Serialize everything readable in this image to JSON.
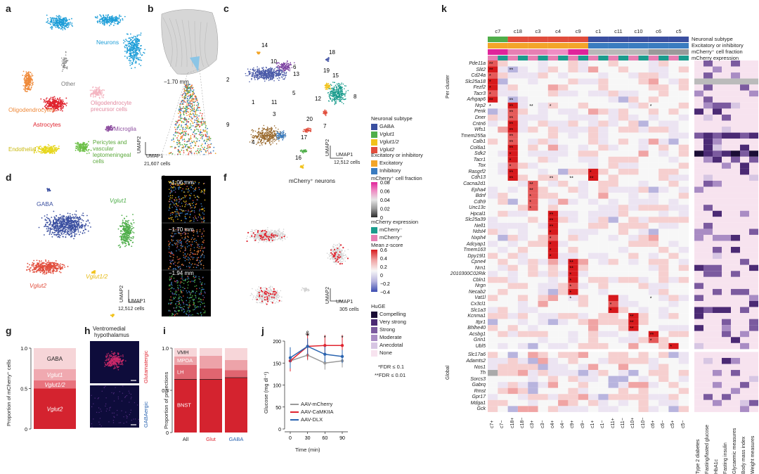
{
  "panel_letters": [
    "a",
    "b",
    "c",
    "d",
    "e",
    "f",
    "g",
    "h",
    "i",
    "j",
    "k"
  ],
  "a": {
    "labels": {
      "neurons": "Neurons",
      "other": "Other",
      "oligodendrocytes": "Oligodendrocytes",
      "opc1": "Oligodendrocyte",
      "opc2": "precursor cells",
      "astrocytes": "Astrocytes",
      "microglia": "Microglia",
      "endothelial": "Endothelial",
      "pericytes1": "Pericytes and",
      "pericytes2": "vascular",
      "pericytes3": "leptomeningeal",
      "pericytes4": "cells"
    },
    "umap1": "UMAP1",
    "umap2": "UMAP2",
    "cells": "21,607 cells",
    "colors": {
      "neurons": "#1f9ed8",
      "oligo": "#ef8a3a",
      "opc": "#f4b6c2",
      "astro": "#e0242f",
      "micro": "#8e4fa0",
      "endo": "#e6d61c",
      "peri": "#6bbf45"
    }
  },
  "b": {
    "depth": "−1.70 mm"
  },
  "c": {
    "clusters": [
      "14",
      "10",
      "6",
      "13",
      "2",
      "1",
      "11",
      "5",
      "18",
      "19",
      "15",
      "12",
      "8",
      "7",
      "9",
      "3",
      "4",
      "17",
      "20",
      "16"
    ],
    "umap1": "UMAP1",
    "umap2": "UMAP2",
    "cells": "12,512 cells"
  },
  "legend_c": {
    "subtype_title": "Neuronal subtype",
    "subtypes": [
      {
        "label": "GABA",
        "color": "#3a4fa0"
      },
      {
        "label": "Vglut1",
        "color": "#4fae4a"
      },
      {
        "label": "Vglut1/2",
        "color": "#f1c21b"
      },
      {
        "label": "Vglut2",
        "color": "#e14d3c"
      }
    ],
    "exc_title": "Excitatory or inhibitory",
    "exc": [
      {
        "label": "Excitatory",
        "color": "#f3a529"
      },
      {
        "label": "Inhibitory",
        "color": "#3a7cc0"
      }
    ],
    "frac_title": "mCherry⁺ cell fraction",
    "frac_ticks": [
      "0.08",
      "0.06",
      "0.04",
      "0.02",
      "0"
    ],
    "expr_title": "mCherry expression",
    "expr": [
      {
        "label": "mCherry⁻",
        "color": "#1b9c8d"
      },
      {
        "label": "mCherry⁺",
        "color": "#e77fb3"
      }
    ],
    "z_title": "Mean z-score",
    "z_ticks": [
      "0.6",
      "0.4",
      "0.2",
      "0",
      "−0.2",
      "−0.4"
    ],
    "huge_title": "HuGE",
    "huge": [
      {
        "label": "Compelling",
        "color": "#1a0d35"
      },
      {
        "label": "Very strong",
        "color": "#4b2a74"
      },
      {
        "label": "Strong",
        "color": "#7b5a9f"
      },
      {
        "label": "Moderate",
        "color": "#a98cc4"
      },
      {
        "label": "Anecdotal",
        "color": "#d7c6e3"
      },
      {
        "label": "None",
        "color": "#f7e3ef"
      }
    ]
  },
  "d": {
    "gaba": "GABA",
    "vglut1": "Vglut1",
    "vglut2": "Vglut2",
    "vglut12": "Vglut1/2",
    "umap1": "UMAP1",
    "umap2": "UMAP2",
    "cells": "12,512 cells"
  },
  "e": {
    "depths": [
      "−1.06 mm",
      "−1.70 mm",
      "−1.94 mm"
    ]
  },
  "f": {
    "title": "mCherry⁺ neurons",
    "umap1": "UMAP1",
    "umap2": "UMAP2",
    "cells": "305 cells"
  },
  "g": {
    "ylabel": "Proportion of mCherry⁺ cells",
    "yticks": [
      "1.0",
      "0.5",
      "0"
    ],
    "segments": [
      "GABA",
      "Vglut1",
      "Vglut1/2",
      "Vglut2"
    ]
  },
  "h": {
    "title1": "Ventromedial",
    "title2": "hypothalamus",
    "glut": "Glutamatergic",
    "gaba": "GABAergic"
  },
  "i": {
    "ylabel": "Proportion of projections",
    "yticks": [
      "1.0",
      "0.5",
      "0"
    ],
    "segments": [
      "VMH",
      "MPOA",
      "LH",
      "BNST"
    ],
    "cats": [
      "All",
      "Glut",
      "GABA"
    ]
  },
  "j": {
    "ylabel": "Glucose (mg dl⁻¹)",
    "xlabel": "Time (min)",
    "yticks": [
      "200",
      "150",
      "100",
      "50",
      "0"
    ],
    "xticks": [
      "0",
      "30",
      "60",
      "90"
    ],
    "sig": [
      "&",
      "*",
      "*",
      "*",
      "*"
    ],
    "series": [
      {
        "name": "AAV-mCherry",
        "color": "#9a9a9a"
      },
      {
        "name": "AAV-CaMKIIA",
        "color": "#e0242f"
      },
      {
        "name": "AAV-DLX",
        "color": "#2a64b0"
      }
    ]
  },
  "fdr": {
    "l1": "*FDR ≤ 0.1",
    "l2": "**FDR ≤ 0.01"
  },
  "k": {
    "clusters": [
      "c7",
      "c18",
      "c3",
      "c4",
      "c9",
      "c1",
      "c11",
      "c10",
      "c6",
      "c5"
    ],
    "annot_rows": [
      "Neuronal subtype",
      "Excitatory or inhibitory",
      "mCherry⁺ cell fraction",
      "mCherry expression"
    ],
    "per_cluster": "Per cluster",
    "global": "Global",
    "genes": [
      "Pde11a",
      "Slit2",
      "Cd24a",
      "Slc25a18",
      "Fezf2",
      "Tacr3",
      "Arhgap6",
      "Nrp2",
      "Penk",
      "Dner",
      "Cntn6",
      "Wfs1",
      "Tmem255a",
      "Calb1",
      "Col6a1",
      "Sdk2",
      "Tacr1",
      "Tox",
      "Rasgrf2",
      "Cdh13",
      "Cacna2d1",
      "Epha4",
      "Bdnf",
      "Cdh9",
      "Unc13c",
      "Hpcal1",
      "Slc25a39",
      "Nell1",
      "Ndst4",
      "Nxph4",
      "Adcyap1",
      "Tmem163",
      "Dpy19l1",
      "Cpne4",
      "Nrn1",
      "2010300C02Rik",
      "Cbln1",
      "Nrgn",
      "Necab2",
      "Vat1l",
      "Cx3cl1",
      "Slc1a3",
      "Kcnma1",
      "Itpr1",
      "Bhlhe40",
      "Acsbg1",
      "Grin1",
      "Ubl5",
      "Slc17a6",
      "Adamts2",
      "Nos1",
      "Th",
      "Sorcs3",
      "Gabrq",
      "Rmst",
      "Gpr17",
      "Mdga1",
      "Gck"
    ],
    "col_labels": [
      "c7+",
      "c7−",
      "c18+",
      "c18−",
      "c3+",
      "c3−",
      "c4+",
      "c4−",
      "c9+",
      "c9−",
      "c1+",
      "c1−",
      "c11+",
      "c11−",
      "c10+",
      "c10−",
      "c6+",
      "c6−",
      "c5+",
      "c5−"
    ],
    "huge_cols": [
      "Type 2 diabetes",
      "Fasting/fasted glucose",
      "HbA1c",
      "Fasting insulin",
      "Glycaemic measures",
      "Body mass index",
      "Weight measures"
    ]
  }
}
